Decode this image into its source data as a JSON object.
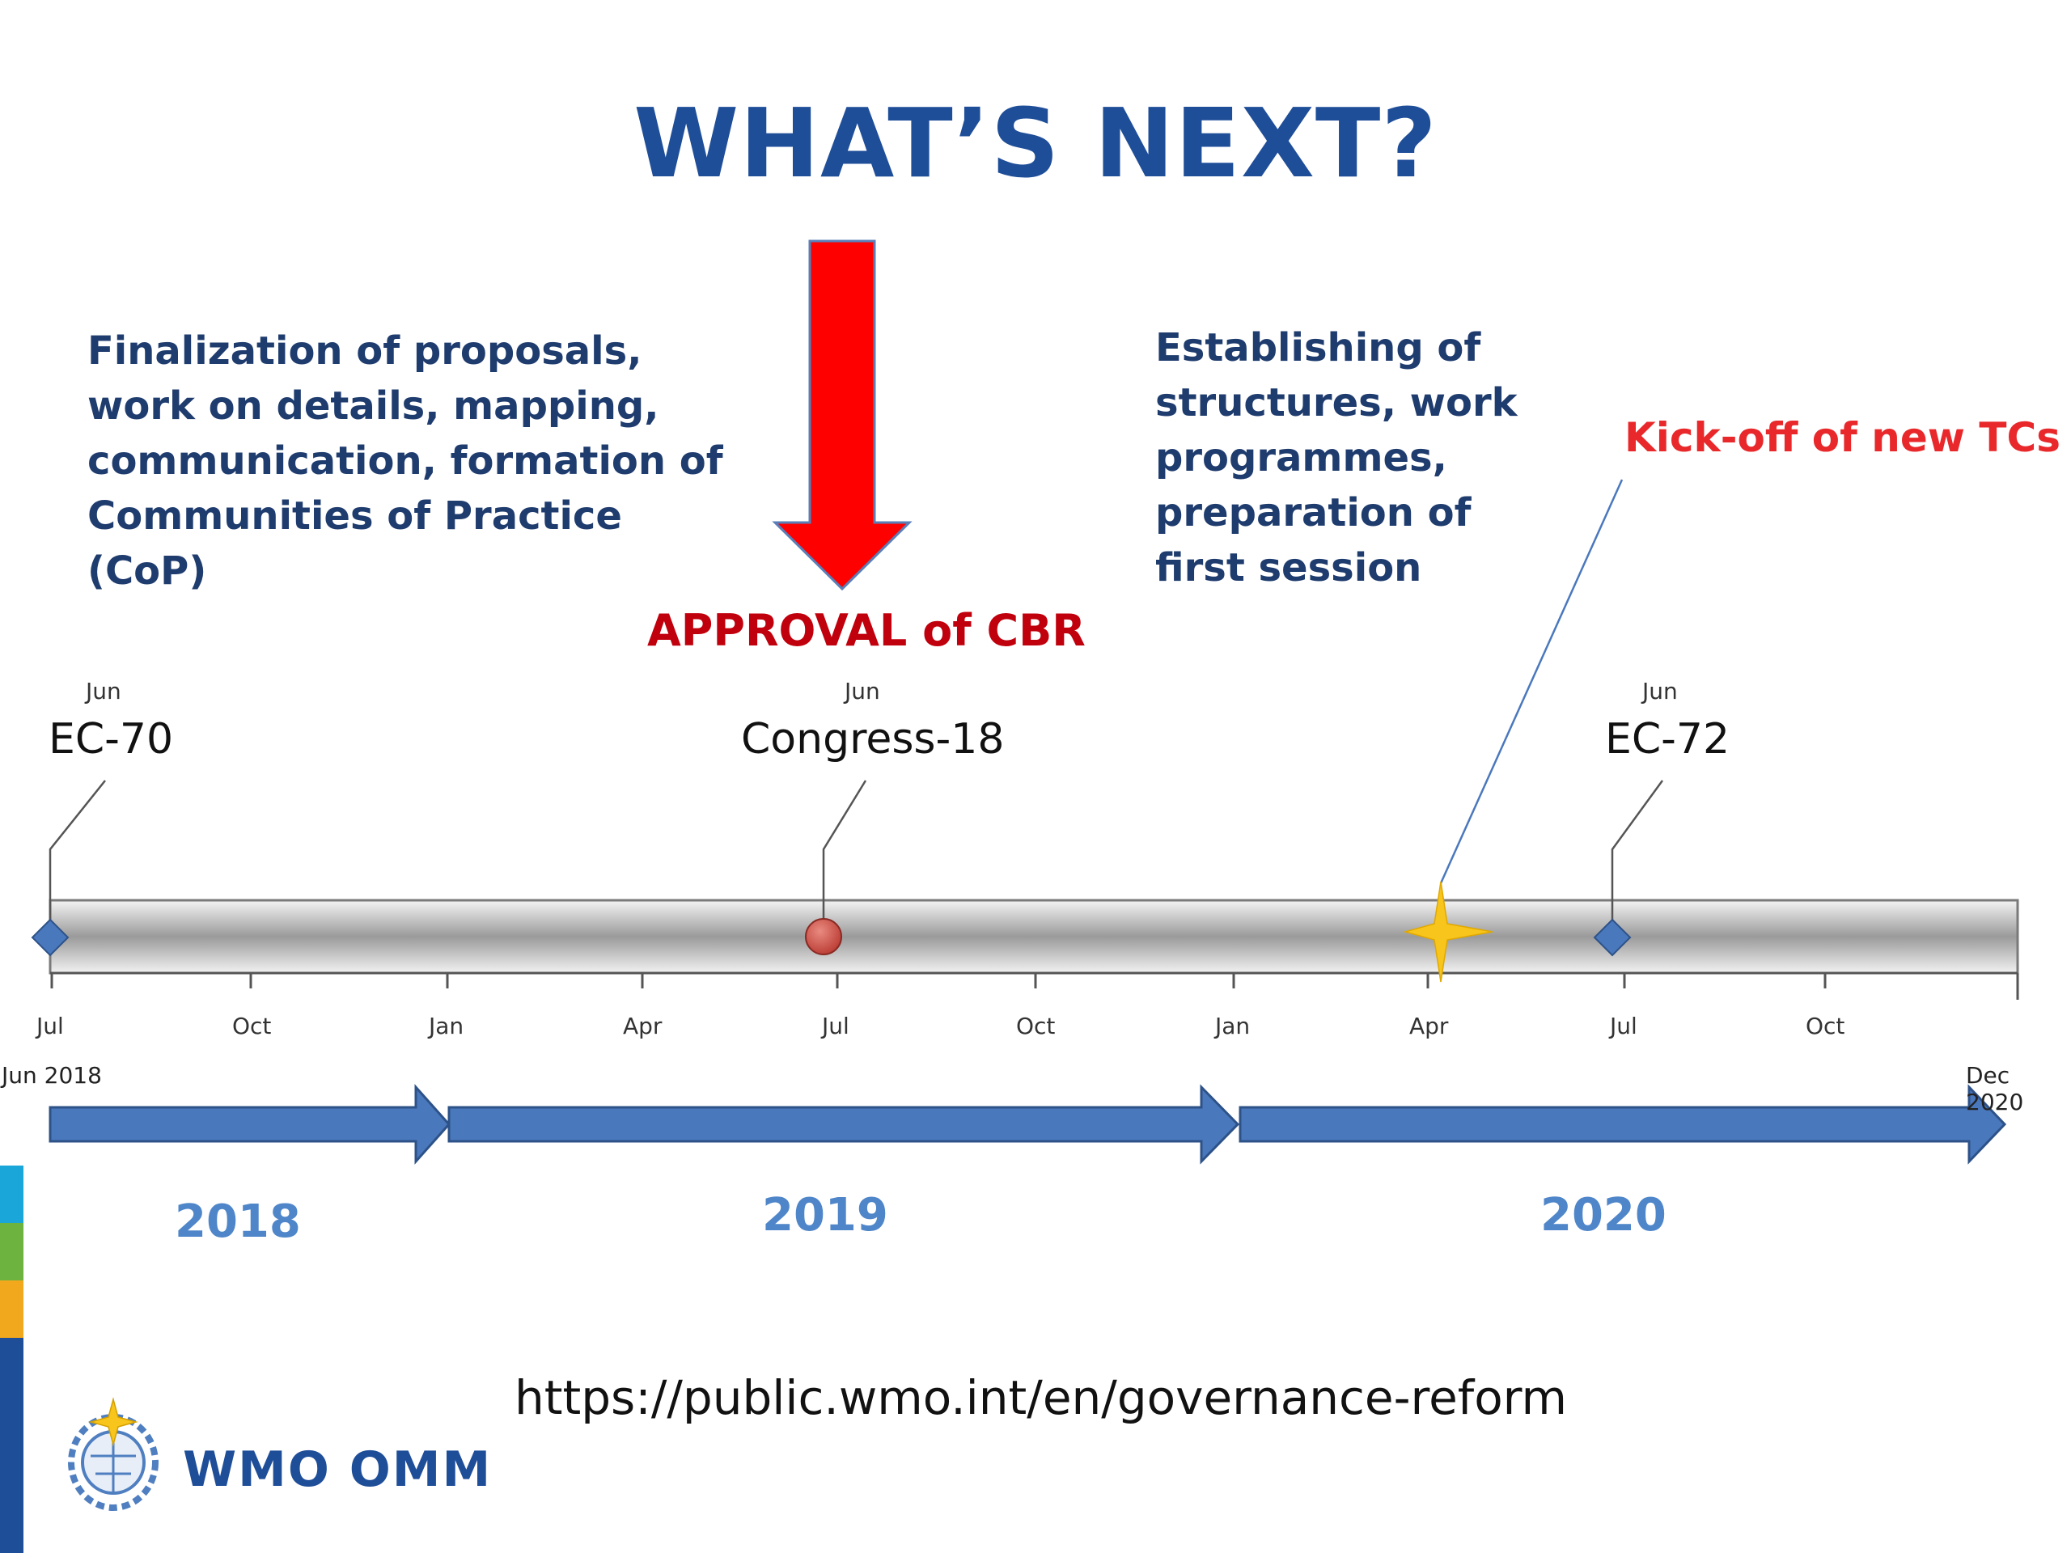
{
  "title": "WHAT’S NEXT?",
  "notes": {
    "left": [
      "Finalization of proposals,",
      "work on details, mapping,",
      "communication, formation of",
      "Communities of Practice (CoP)"
    ],
    "right": [
      "Establishing of",
      "structures, work",
      "programmes,",
      "preparation of",
      "first session"
    ],
    "kickoff": "Kick-off of new TCs",
    "approval": "APPROVAL of CBR"
  },
  "events": [
    {
      "month": "Jun",
      "name": "EC-70",
      "marker": "diamond"
    },
    {
      "month": "Jun",
      "name": "Congress-18",
      "marker": "circle"
    },
    {
      "month": "Jun",
      "name": "EC-72",
      "marker": "diamond"
    }
  ],
  "ticks": [
    "Jul",
    "Oct",
    "Jan",
    "Apr",
    "Jul",
    "Oct",
    "Jan",
    "Apr",
    "Jul",
    "Oct"
  ],
  "range": {
    "start": "Jun 2018",
    "end": "Dec 2020"
  },
  "years": [
    "2018",
    "2019",
    "2020"
  ],
  "url": "https://public.wmo.int/en/governance-reform",
  "logo": {
    "text": "WMO OMM"
  },
  "colors": {
    "title_blue": "#1f4e99",
    "note_blue": "#1f3c6e",
    "arrow_red": "#ff0000",
    "approval_red": "#c0000c",
    "kickoff_red": "#e8282a",
    "year_blue": "#4f86c9",
    "band_arrow": "#4a78bd",
    "diamond": "#4a78bd",
    "circle": "#c9403a",
    "star": "#f8c51c"
  }
}
